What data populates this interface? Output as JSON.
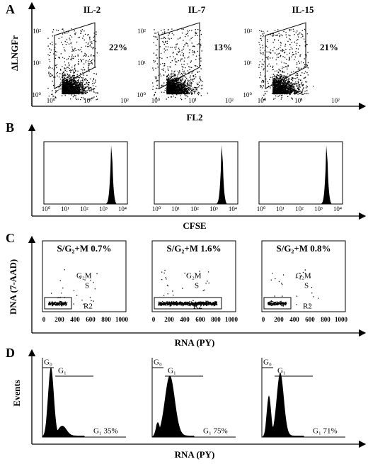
{
  "panels": [
    {
      "letter": "A",
      "y_label": "ΔLNGFr",
      "x_label": "FL2",
      "plots": [
        {
          "title": "IL-2",
          "percent": "22%",
          "x_ticks": [
            "10⁰",
            "10¹",
            "10²"
          ],
          "y_ticks": [
            "10²",
            "10¹",
            "10⁰"
          ]
        },
        {
          "title": "IL-7",
          "percent": "13%",
          "x_ticks": [
            "10⁰",
            "10¹",
            "10²"
          ],
          "y_ticks": [
            "10²",
            "10¹",
            "10⁰"
          ]
        },
        {
          "title": "IL-15",
          "percent": "21%",
          "x_ticks": [
            "10⁰",
            "10¹",
            "10²"
          ],
          "y_ticks": [
            "10²",
            "10¹",
            "10⁰"
          ]
        }
      ]
    },
    {
      "letter": "B",
      "x_label": "CFSE",
      "plots": [
        {
          "x_ticks": [
            "10⁰",
            "10¹",
            "10²",
            "10³",
            "10⁴"
          ]
        },
        {
          "x_ticks": [
            "10⁰",
            "10¹",
            "10²",
            "10³",
            "10⁴"
          ]
        },
        {
          "x_ticks": [
            "10⁰",
            "10¹",
            "10²",
            "10³",
            "10⁴"
          ]
        }
      ]
    },
    {
      "letter": "C",
      "y_label": "DNA (7-AAD)",
      "x_label": "RNA (PY)",
      "plots": [
        {
          "title": "S/G₂+M 0.7%",
          "labels": [
            "G₂M",
            "S",
            "R2"
          ],
          "x_ticks": [
            "0",
            "200",
            "400",
            "600",
            "800",
            "1000"
          ]
        },
        {
          "title": "S/G₂+M 1.6%",
          "labels": [
            "G₂M",
            "S",
            "R2"
          ],
          "x_ticks": [
            "0",
            "200",
            "400",
            "600",
            "800",
            "1000"
          ]
        },
        {
          "title": "S/G₂+M 0.8%",
          "labels": [
            "G₂M",
            "S",
            "R2"
          ],
          "x_ticks": [
            "0",
            "200",
            "400",
            "600",
            "800",
            "1000"
          ]
        }
      ]
    },
    {
      "letter": "D",
      "y_label": "Events",
      "x_label": "RNA (PY)",
      "plots": [
        {
          "g0": "G₀",
          "g1": "G₁",
          "fraction": "G₁ 35%"
        },
        {
          "g0": "G₀",
          "g1": "G₁",
          "fraction": "G₁ 75%"
        },
        {
          "g0": "G₀",
          "g1": "G₁",
          "fraction": "G₁ 71%"
        }
      ]
    }
  ]
}
